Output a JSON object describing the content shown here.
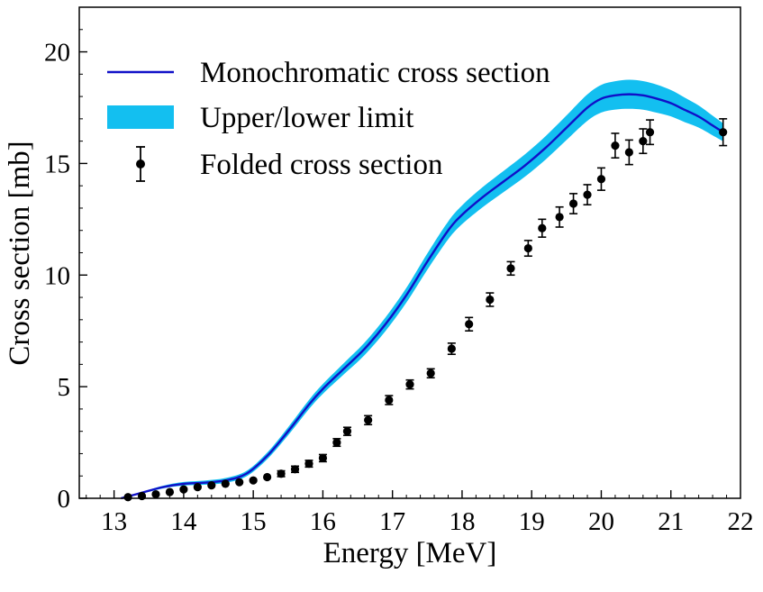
{
  "chart_data": {
    "type": "line",
    "title": "",
    "xlabel": "Energy [MeV]",
    "ylabel": "Cross section [mb]",
    "xlim": [
      12.5,
      22.0
    ],
    "ylim": [
      0,
      22
    ],
    "xticks": [
      13,
      14,
      15,
      16,
      17,
      18,
      19,
      20,
      21,
      22
    ],
    "yticks": [
      0,
      5,
      10,
      15,
      20
    ],
    "grid": false,
    "legend_position": "top-left",
    "colors": {
      "monochromatic": "#1010c8",
      "band": "#13bff0",
      "folded": "#000000"
    },
    "legend": {
      "monochromatic": "Monochromatic cross section",
      "band": "Upper/lower limit",
      "folded": "Folded cross section"
    },
    "monochromatic": {
      "x": [
        13.1,
        13.4,
        13.7,
        14.0,
        14.3,
        14.6,
        14.9,
        15.2,
        15.5,
        15.8,
        16.0,
        16.3,
        16.6,
        16.9,
        17.2,
        17.5,
        17.8,
        18.0,
        18.3,
        18.6,
        18.9,
        19.2,
        19.5,
        19.8,
        20.0,
        20.2,
        20.4,
        20.6,
        20.8,
        21.0,
        21.2,
        21.4,
        21.6,
        21.75
      ],
      "y": [
        0.0,
        0.25,
        0.5,
        0.65,
        0.7,
        0.8,
        1.1,
        1.9,
        3.0,
        4.2,
        4.9,
        5.8,
        6.7,
        7.8,
        9.1,
        10.6,
        12.0,
        12.7,
        13.5,
        14.2,
        14.9,
        15.7,
        16.6,
        17.5,
        17.9,
        18.05,
        18.1,
        18.05,
        17.9,
        17.7,
        17.4,
        17.1,
        16.7,
        16.4
      ]
    },
    "limit_halfwidth": {
      "x": [
        13.1,
        14.0,
        14.9,
        15.5,
        16.0,
        16.6,
        17.2,
        17.8,
        18.3,
        18.9,
        19.5,
        20.0,
        20.4,
        20.8,
        21.2,
        21.75
      ],
      "y": [
        0.02,
        0.08,
        0.12,
        0.18,
        0.22,
        0.28,
        0.33,
        0.4,
        0.45,
        0.5,
        0.55,
        0.62,
        0.65,
        0.63,
        0.55,
        0.4
      ]
    },
    "folded": {
      "x": [
        13.2,
        13.4,
        13.6,
        13.8,
        14.0,
        14.2,
        14.4,
        14.6,
        14.8,
        15.0,
        15.2,
        15.4,
        15.6,
        15.8,
        16.0,
        16.2,
        16.35,
        16.65,
        16.95,
        17.25,
        17.55,
        17.85,
        18.1,
        18.4,
        18.7,
        18.95,
        19.15,
        19.4,
        19.6,
        19.8,
        20.0,
        20.2,
        20.4,
        20.6,
        20.7,
        21.75
      ],
      "y": [
        0.05,
        0.1,
        0.18,
        0.28,
        0.4,
        0.5,
        0.58,
        0.65,
        0.72,
        0.8,
        0.95,
        1.1,
        1.3,
        1.55,
        1.8,
        2.5,
        3.0,
        3.5,
        4.4,
        5.1,
        5.6,
        6.7,
        7.8,
        8.9,
        10.3,
        11.2,
        12.1,
        12.6,
        13.2,
        13.6,
        14.3,
        15.8,
        15.5,
        16.0,
        16.4,
        16.4
      ],
      "err": [
        0.02,
        0.03,
        0.04,
        0.05,
        0.06,
        0.07,
        0.08,
        0.09,
        0.1,
        0.11,
        0.12,
        0.13,
        0.14,
        0.15,
        0.16,
        0.17,
        0.18,
        0.2,
        0.2,
        0.2,
        0.2,
        0.25,
        0.3,
        0.3,
        0.3,
        0.35,
        0.4,
        0.45,
        0.45,
        0.45,
        0.5,
        0.55,
        0.55,
        0.55,
        0.55,
        0.6
      ]
    }
  }
}
